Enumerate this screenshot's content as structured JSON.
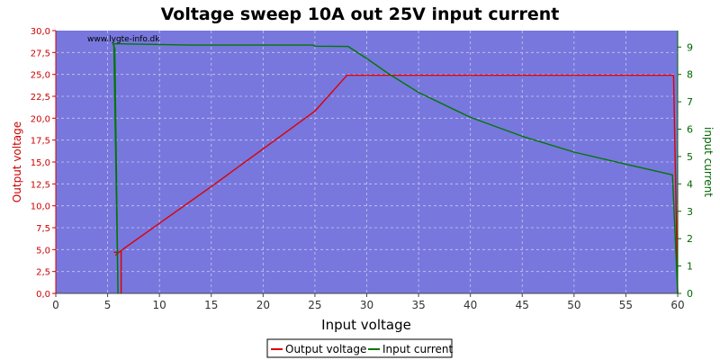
{
  "chart_data": {
    "type": "line",
    "title": "Voltage sweep 10A out 25V input current",
    "watermark": "www.lygte-info.dk",
    "xlabel": "Input voltage",
    "ylabel_left": "Output voltage",
    "ylabel_right": "input current",
    "xlim": [
      0,
      60
    ],
    "ylim_left": [
      0,
      30
    ],
    "ylim_right": [
      0,
      9.6
    ],
    "x_ticks": [
      0,
      5,
      10,
      15,
      20,
      25,
      30,
      35,
      40,
      45,
      50,
      55,
      60
    ],
    "y_left_ticks": [
      "0,0",
      "2,5",
      "5,0",
      "7,5",
      "10,0",
      "12,5",
      "15,0",
      "17,5",
      "20,0",
      "22,5",
      "25,0",
      "27,5",
      "30,0"
    ],
    "y_right_ticks": [
      0,
      1,
      2,
      3,
      4,
      5,
      6,
      7,
      8,
      9
    ],
    "grid": true,
    "legend_position": "bottom-center",
    "colors": {
      "plot_bg": "#7777dd",
      "output_voltage": "#dd0000",
      "input_current": "#007700",
      "left_axis": "#cc0000",
      "right_axis": "#006600"
    },
    "series": [
      {
        "name": "Output voltage",
        "axis": "left",
        "points": [
          [
            5.6,
            4.7
          ],
          [
            6.1,
            4.7
          ],
          [
            5.8,
            4.4
          ],
          [
            6.3,
            4.9
          ],
          [
            6.3,
            0.0
          ],
          [
            6.3,
            4.9
          ],
          [
            10,
            8.0
          ],
          [
            15,
            12.2
          ],
          [
            20,
            16.5
          ],
          [
            25,
            20.8
          ],
          [
            28.1,
            24.9
          ],
          [
            35,
            24.9
          ],
          [
            40,
            24.9
          ],
          [
            45,
            24.9
          ],
          [
            50,
            24.9
          ],
          [
            55,
            24.9
          ],
          [
            59.6,
            24.9
          ],
          [
            60,
            0.0
          ]
        ]
      },
      {
        "name": "Input current",
        "axis": "right",
        "points": [
          [
            5.5,
            9.12
          ],
          [
            5.7,
            8.95
          ],
          [
            6.0,
            0.0
          ],
          [
            5.6,
            9.12
          ],
          [
            13,
            9.07
          ],
          [
            20,
            9.07
          ],
          [
            24.8,
            9.07
          ],
          [
            25,
            9.03
          ],
          [
            28.2,
            9.02
          ],
          [
            30,
            8.58
          ],
          [
            32,
            8.05
          ],
          [
            35,
            7.34
          ],
          [
            40,
            6.43
          ],
          [
            45,
            5.74
          ],
          [
            50,
            5.16
          ],
          [
            55,
            4.72
          ],
          [
            59.5,
            4.33
          ],
          [
            60,
            0.0
          ]
        ]
      }
    ]
  }
}
